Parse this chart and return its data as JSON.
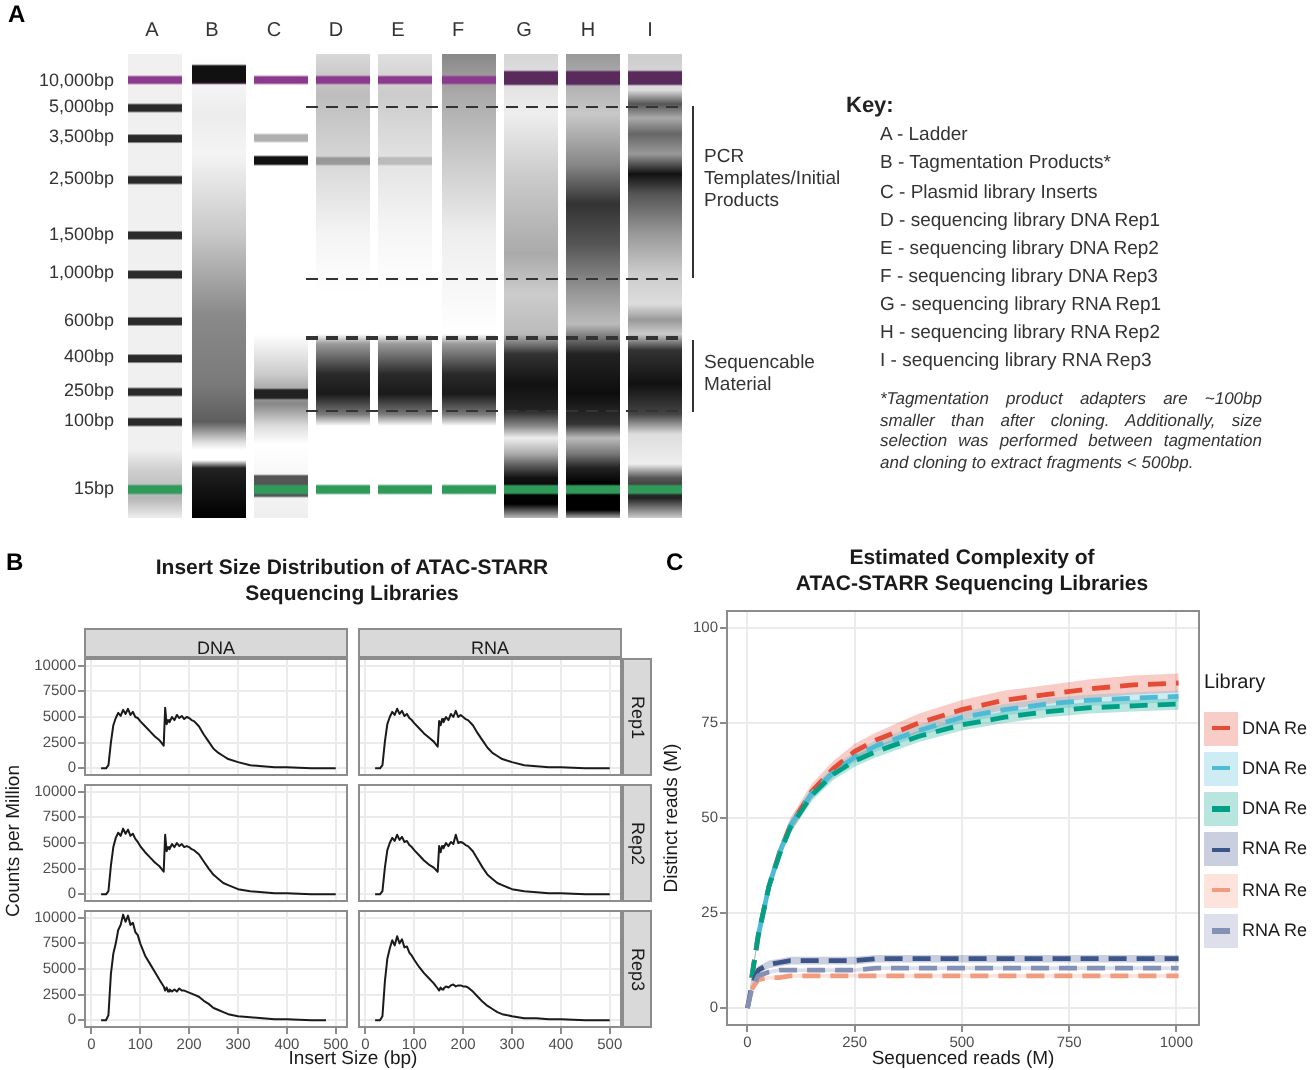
{
  "chart_data": [
    {
      "type": "other",
      "annotations": [
        "A",
        "A",
        "B",
        "C",
        "D",
        "E",
        "F",
        "G",
        "H",
        "I",
        "10,000bp",
        "5,000bp",
        "3,500bp",
        "2,500bp",
        "1,500bp",
        "1,000bp",
        "600bp",
        "400bp",
        "250bp",
        "100bp",
        "15bp",
        "PCR Templates/Initial Products",
        "Sequencable Material",
        "Key:",
        "A - Ladder",
        "B - Tagmentation Products*",
        "C - Plasmid library Inserts",
        "D - sequencing library DNA Rep1",
        "E - sequencing library DNA Rep2",
        "F - sequencing library DNA Rep3",
        "G - sequencing library RNA Rep1",
        "H - sequencing library RNA Rep2",
        "I - sequencing library RNA Rep3",
        "*Tagmentation product adapters are ~100bp smaller than after cloning. Additionally, size selection was performed between tagmentation and cloning to extract fragments < 500bp."
      ]
    },
    {
      "type": "other",
      "title": "Insert Size Distribution of ATAC-STARR Sequencing Libraries",
      "xlabel": "Insert Size (bp)",
      "ylabel": "Counts per Million",
      "annotations": [
        "B"
      ]
    },
    {
      "type": "line",
      "title": "DNA",
      "tick_labels": "y",
      "color": "#1a1a1a",
      "grid": true,
      "xlim": [
        -15,
        525
      ],
      "ylim": [
        -750,
        10750
      ],
      "xticks": [
        0,
        100,
        200,
        300,
        400,
        500
      ],
      "yticks": [
        0,
        2500,
        5000,
        7500,
        10000
      ],
      "x": [
        20,
        30,
        35,
        40,
        45,
        50,
        55,
        60,
        65,
        70,
        75,
        80,
        85,
        90,
        95,
        100,
        110,
        120,
        130,
        140,
        148,
        151,
        154,
        157,
        160,
        165,
        170,
        175,
        180,
        185,
        190,
        195,
        200,
        205,
        210,
        220,
        230,
        240,
        250,
        260,
        270,
        280,
        300,
        325,
        350,
        375,
        400,
        450,
        500
      ],
      "values": [
        0,
        0,
        300,
        2500,
        4200,
        4900,
        5400,
        5100,
        5700,
        5300,
        5800,
        5200,
        5500,
        5000,
        4900,
        4600,
        4100,
        3600,
        3100,
        2700,
        2200,
        5900,
        4300,
        4700,
        4500,
        5000,
        4700,
        5200,
        4900,
        5100,
        4800,
        5000,
        4900,
        4700,
        4600,
        4100,
        3300,
        2600,
        1900,
        1500,
        1200,
        900,
        600,
        300,
        200,
        100,
        100,
        0,
        0
      ]
    },
    {
      "type": "line",
      "title": "RNA",
      "annotations": [
        "Rep1"
      ],
      "tick_labels": false,
      "color": "#1a1a1a",
      "grid": true,
      "xlim": [
        -15,
        525
      ],
      "ylim": [
        -750,
        10750
      ],
      "xticks": [
        0,
        100,
        200,
        300,
        400,
        500
      ],
      "yticks": [
        0,
        2500,
        5000,
        7500,
        10000
      ],
      "x": [
        20,
        30,
        35,
        40,
        45,
        50,
        55,
        60,
        65,
        70,
        75,
        80,
        85,
        90,
        95,
        100,
        110,
        120,
        130,
        140,
        148,
        151,
        154,
        157,
        160,
        165,
        170,
        175,
        180,
        185,
        190,
        195,
        200,
        205,
        210,
        220,
        230,
        240,
        250,
        260,
        270,
        280,
        300,
        325,
        350,
        375,
        400,
        450,
        500
      ],
      "values": [
        0,
        0,
        300,
        2600,
        4300,
        5000,
        5500,
        5200,
        5800,
        5300,
        5600,
        5100,
        5300,
        4900,
        4700,
        4400,
        3900,
        3400,
        3000,
        2600,
        2100,
        4600,
        4200,
        4800,
        4500,
        5000,
        4700,
        5300,
        5000,
        5600,
        5000,
        5200,
        5000,
        4800,
        4700,
        4200,
        3400,
        2700,
        2000,
        1500,
        1200,
        900,
        600,
        300,
        200,
        100,
        100,
        0,
        0
      ]
    },
    {
      "type": "line",
      "tick_labels": "y",
      "color": "#1a1a1a",
      "grid": true,
      "xlim": [
        -15,
        525
      ],
      "ylim": [
        -750,
        10750
      ],
      "xticks": [
        0,
        100,
        200,
        300,
        400,
        500
      ],
      "yticks": [
        0,
        2500,
        5000,
        7500,
        10000
      ],
      "x": [
        20,
        30,
        35,
        40,
        45,
        50,
        55,
        60,
        65,
        70,
        75,
        80,
        85,
        90,
        95,
        100,
        110,
        120,
        130,
        140,
        148,
        151,
        154,
        157,
        160,
        165,
        170,
        175,
        180,
        185,
        190,
        195,
        200,
        205,
        210,
        220,
        230,
        240,
        250,
        260,
        270,
        280,
        300,
        325,
        350,
        375,
        400,
        450,
        500
      ],
      "values": [
        0,
        0,
        300,
        2800,
        4600,
        5500,
        6000,
        5700,
        6400,
        5900,
        6300,
        5700,
        5900,
        5400,
        5100,
        4700,
        4100,
        3600,
        3100,
        2700,
        2200,
        5800,
        4200,
        4600,
        4400,
        4900,
        4600,
        5000,
        4700,
        4900,
        4600,
        4700,
        4600,
        4400,
        4300,
        3900,
        3200,
        2500,
        1900,
        1500,
        1100,
        900,
        500,
        300,
        200,
        100,
        100,
        0,
        0
      ]
    },
    {
      "type": "line",
      "annotations": [
        "Rep2"
      ],
      "tick_labels": false,
      "color": "#1a1a1a",
      "grid": true,
      "xlim": [
        -15,
        525
      ],
      "ylim": [
        -750,
        10750
      ],
      "xticks": [
        0,
        100,
        200,
        300,
        400,
        500
      ],
      "yticks": [
        0,
        2500,
        5000,
        7500,
        10000
      ],
      "x": [
        20,
        30,
        35,
        40,
        45,
        50,
        55,
        60,
        65,
        70,
        75,
        80,
        85,
        90,
        95,
        100,
        110,
        120,
        130,
        140,
        148,
        151,
        154,
        157,
        160,
        165,
        170,
        175,
        180,
        185,
        190,
        195,
        200,
        205,
        210,
        220,
        230,
        240,
        250,
        260,
        270,
        280,
        300,
        325,
        350,
        375,
        400,
        450,
        500
      ],
      "values": [
        0,
        0,
        300,
        2600,
        4300,
        5000,
        5500,
        5200,
        5800,
        5300,
        5600,
        5100,
        5200,
        4800,
        4600,
        4300,
        3800,
        3300,
        2900,
        2600,
        2200,
        4700,
        4100,
        4700,
        4500,
        5000,
        4700,
        5100,
        4900,
        5800,
        5000,
        5100,
        5000,
        4800,
        4700,
        4200,
        3400,
        2600,
        1900,
        1500,
        1100,
        900,
        500,
        300,
        200,
        100,
        100,
        0,
        0
      ]
    },
    {
      "type": "line",
      "color": "#1a1a1a",
      "grid": true,
      "xlim": [
        -15,
        525
      ],
      "ylim": [
        -750,
        10750
      ],
      "xticks": [
        0,
        100,
        200,
        300,
        400,
        500
      ],
      "yticks": [
        0,
        2500,
        5000,
        7500,
        10000
      ],
      "x": [
        20,
        30,
        35,
        40,
        45,
        50,
        55,
        60,
        65,
        70,
        75,
        80,
        85,
        90,
        95,
        100,
        110,
        120,
        130,
        140,
        148,
        151,
        154,
        157,
        160,
        165,
        170,
        175,
        180,
        185,
        190,
        195,
        200,
        205,
        210,
        220,
        230,
        240,
        250,
        260,
        270,
        280,
        300,
        325,
        350,
        375,
        400,
        450,
        480
      ],
      "values": [
        0,
        0,
        500,
        4500,
        6500,
        7500,
        8800,
        9300,
        10300,
        9600,
        10200,
        9300,
        9500,
        8600,
        8300,
        7500,
        6300,
        5500,
        4700,
        3900,
        3300,
        2900,
        3200,
        2800,
        3000,
        2800,
        3000,
        2800,
        3100,
        2900,
        2900,
        2800,
        2700,
        2600,
        2500,
        2300,
        1900,
        1600,
        1200,
        1000,
        800,
        600,
        400,
        300,
        200,
        100,
        100,
        0,
        0
      ]
    },
    {
      "type": "line",
      "annotations": [
        "Rep3"
      ],
      "tick_labels": "x",
      "color": "#1a1a1a",
      "grid": true,
      "xlim": [
        -15,
        525
      ],
      "ylim": [
        -750,
        10750
      ],
      "xticks": [
        0,
        100,
        200,
        300,
        400,
        500
      ],
      "yticks": [
        0,
        2500,
        5000,
        7500,
        10000
      ],
      "x": [
        20,
        30,
        35,
        40,
        45,
        50,
        55,
        60,
        65,
        70,
        75,
        80,
        85,
        90,
        95,
        100,
        110,
        120,
        130,
        140,
        148,
        151,
        154,
        157,
        160,
        165,
        170,
        175,
        180,
        185,
        190,
        195,
        200,
        205,
        210,
        220,
        230,
        240,
        250,
        260,
        270,
        280,
        300,
        325,
        350,
        375,
        400,
        450,
        500
      ],
      "values": [
        0,
        0,
        400,
        3800,
        6000,
        7000,
        7800,
        7300,
        8200,
        7500,
        7900,
        7100,
        7200,
        6600,
        6300,
        5900,
        5200,
        4600,
        4100,
        3600,
        3100,
        2900,
        3200,
        3000,
        3100,
        3300,
        3200,
        3400,
        3500,
        3300,
        3400,
        3400,
        3300,
        3300,
        3200,
        2800,
        2300,
        1800,
        1400,
        1100,
        800,
        600,
        400,
        200,
        200,
        100,
        100,
        0,
        0
      ]
    },
    {
      "type": "line",
      "title": "Estimated Complexity of ATAC-STARR Sequencing Libraries",
      "xlabel": "Sequenced reads (M)",
      "ylabel": "Distinct reads (M)",
      "legend_title": "Library",
      "legend": "right",
      "line_style": "dashed",
      "grid": true,
      "annotations": [
        "C"
      ],
      "xlim": [
        -50,
        1055
      ],
      "ylim": [
        -4.7,
        104.7
      ],
      "xticks": [
        0,
        250,
        500,
        750,
        1000
      ],
      "yticks": [
        0,
        25,
        50,
        75,
        100
      ],
      "x": [
        0,
        10,
        25,
        50,
        75,
        100,
        150,
        200,
        250,
        300,
        400,
        500,
        600,
        700,
        800,
        900,
        1005
      ],
      "series": [
        {
          "name": "DNA Re",
          "color": "#e64b35",
          "values": [
            null,
            8,
            19,
            32,
            41,
            48,
            57,
            63,
            67.5,
            70.5,
            75,
            78.5,
            81,
            82.5,
            84,
            85,
            85.5
          ],
          "lower": [
            0,
            7.5,
            18,
            30.5,
            39.5,
            46,
            55,
            61,
            65.5,
            68.5,
            72.5,
            76,
            78.5,
            80,
            81.5,
            82.5,
            83
          ],
          "upper": [
            0,
            8.5,
            20,
            33.5,
            42.5,
            50,
            59,
            65,
            69.5,
            72.5,
            77.5,
            81,
            83.5,
            85,
            86.5,
            87.5,
            88
          ]
        },
        {
          "name": "DNA Re",
          "color": "#4dbbd5",
          "values": [
            null,
            null,
            19,
            32,
            41,
            48,
            56.5,
            62,
            66,
            69,
            73,
            76.5,
            78.5,
            80,
            81,
            81.5,
            82
          ],
          "lower": [
            0,
            7.5,
            18,
            30.5,
            39.5,
            46.5,
            55,
            60.5,
            64.5,
            67.5,
            71.5,
            75,
            77,
            78.5,
            79.5,
            80,
            80.5
          ],
          "upper": [
            0,
            8.5,
            20,
            33.5,
            42.5,
            49.5,
            58,
            63.5,
            67.5,
            70.5,
            74.5,
            78,
            80,
            81.5,
            82.5,
            83,
            83.5
          ]
        },
        {
          "name": "DNA Re",
          "color": "#00a087",
          "values": [
            null,
            8,
            19,
            32,
            40.5,
            47.5,
            56,
            61.5,
            65,
            67.5,
            71.5,
            74.5,
            76.5,
            78,
            79,
            79.5,
            80
          ],
          "lower": [
            0,
            7.5,
            18,
            30.5,
            39,
            46,
            54.5,
            60,
            63.5,
            66,
            70,
            73,
            75,
            76.5,
            77.5,
            78,
            78.5
          ],
          "upper": [
            0,
            8.5,
            20,
            33.5,
            42,
            49,
            57.5,
            63,
            66.5,
            69,
            73,
            76,
            78,
            79.5,
            80.5,
            81,
            81.5
          ]
        },
        {
          "name": "RNA Re",
          "color": "#3c5488",
          "values": [
            0,
            6,
            10,
            11.5,
            12,
            12.5,
            12.5,
            12.5,
            12.5,
            13,
            13,
            13,
            13,
            13,
            13,
            13,
            13
          ],
          "lower": [
            0,
            5,
            9,
            10.5,
            11,
            11.5,
            11.5,
            11.5,
            11.5,
            12,
            12,
            12,
            12,
            12,
            12,
            12,
            12
          ],
          "upper": [
            0,
            7,
            11,
            12.5,
            13,
            13.5,
            13.5,
            13.5,
            13.5,
            14,
            14,
            14,
            14,
            14,
            14,
            14,
            14
          ]
        },
        {
          "name": "RNA Re",
          "color": "#f39b7f",
          "values": [
            null,
            5,
            7.5,
            8,
            8,
            8.5,
            8.5,
            8.5,
            8.5,
            8.5,
            8.5,
            8.5,
            8.5,
            8.5,
            8.5,
            8.5,
            8.5
          ],
          "lower": [
            0,
            4.5,
            7,
            7.5,
            7.5,
            8,
            8,
            8,
            8,
            8,
            8,
            8,
            8,
            8,
            8,
            8,
            8
          ],
          "upper": [
            0,
            5.5,
            8,
            8.5,
            8.5,
            9,
            9,
            9,
            9,
            9,
            9,
            9,
            9,
            9,
            9,
            9,
            9
          ]
        },
        {
          "name": "RNA Re",
          "color": "#8491b4",
          "values": [
            0,
            5,
            8.5,
            9.5,
            10,
            10,
            10,
            10,
            10,
            10.5,
            10.5,
            10.5,
            10.5,
            10.5,
            10.5,
            10.5,
            10.5
          ],
          "lower": [
            0,
            4.5,
            8,
            9,
            9.5,
            9.5,
            9.5,
            9.5,
            9.5,
            10,
            10,
            10,
            10,
            10,
            10,
            10,
            10
          ],
          "upper": [
            0,
            5.5,
            9,
            10,
            10.5,
            10.5,
            10.5,
            10.5,
            10.5,
            11,
            11,
            11,
            11,
            11,
            11,
            11,
            11
          ]
        }
      ]
    }
  ]
}
